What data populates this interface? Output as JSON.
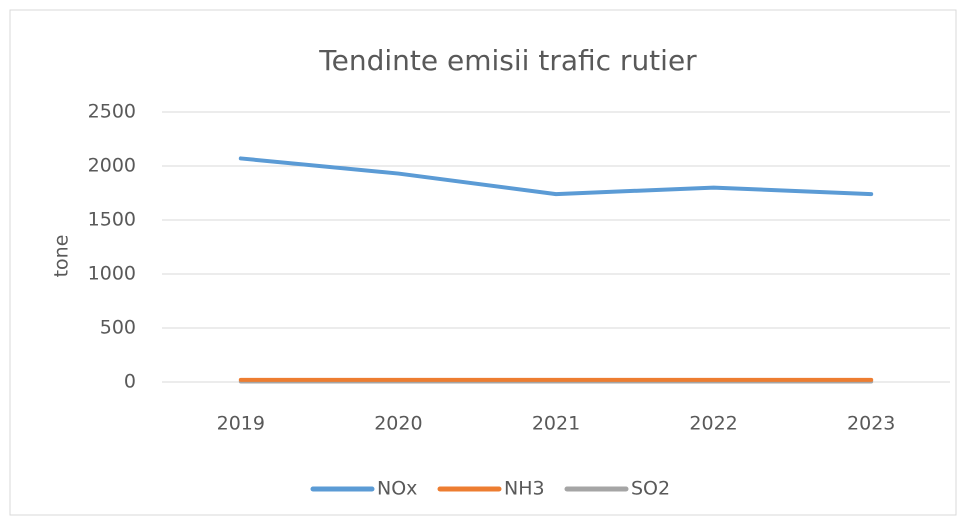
{
  "chart_data": {
    "type": "line",
    "title": "Tendinte emisii trafic rutier",
    "y_label": "tone",
    "categories": [
      "2019",
      "2020",
      "2021",
      "2022",
      "2023"
    ],
    "series": [
      {
        "name": "NOx",
        "color": "#5b9bd5",
        "values": [
          2070,
          1930,
          1740,
          1800,
          1740
        ]
      },
      {
        "name": "NH3",
        "color": "#ed7d31",
        "values": [
          20,
          20,
          20,
          20,
          20
        ]
      },
      {
        "name": "SO2",
        "color": "#a5a5a5",
        "values": [
          5,
          5,
          5,
          5,
          5
        ]
      }
    ],
    "ylim": [
      0,
      2500
    ],
    "yticks": [
      0,
      500,
      1000,
      1500,
      2000,
      2500
    ],
    "grid": true,
    "legend": "bottom"
  }
}
